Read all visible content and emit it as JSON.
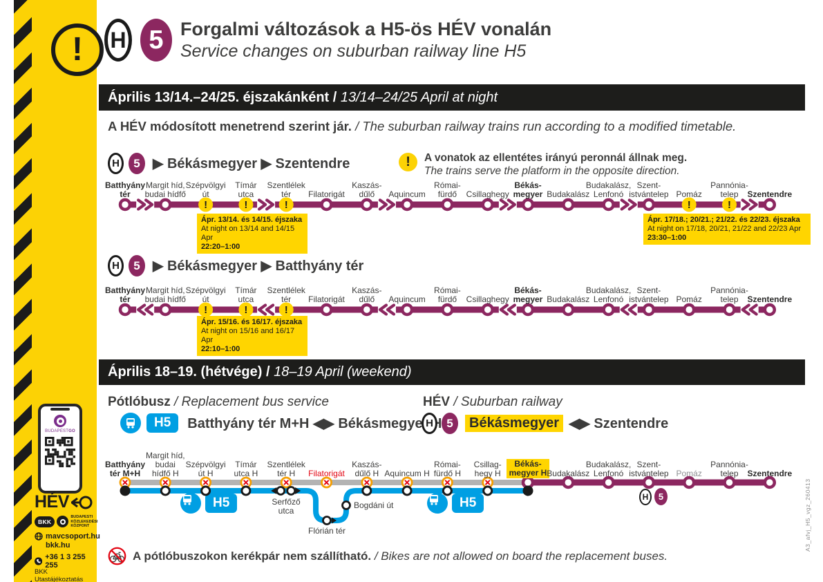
{
  "colors": {
    "purple": "#8C2760",
    "yellow": "#FFD500",
    "sidebar_yellow": "#FCD205",
    "blue": "#009FE3",
    "grayline": "#B3B3B3",
    "orange": "#F59E00",
    "red": "#E30613",
    "bar": "#1D1D1B",
    "text": "#3C3C3B"
  },
  "badges": {
    "h": "H",
    "five": "5"
  },
  "header": {
    "title_hu": "Forgalmi változások a H5-ös HÉV vonalán",
    "title_en": "Service changes on suburban railway line H5"
  },
  "night": {
    "bar_bold": "Április 13/14.–24/25. éjszakánként / ",
    "bar_italic": "13/14–24/25 April at night",
    "intro_bold": "A HÉV módosított menetrend szerint jár.",
    "intro_italic": " / The suburban railway trains run according to a modified timetable.",
    "platform_note_hu": "A vonatok az ellentétes irányú peronnál állnak meg.",
    "platform_note_en": "The trains serve the platform in the opposite direction."
  },
  "route1": {
    "title": "▶ Békásmegyer ▶ Szentendre"
  },
  "route2": {
    "title": "▶ Békásmegyer ▶ Batthyány tér"
  },
  "diagram1": {
    "dir": "right",
    "gaps": [
      0,
      3,
      6,
      9,
      12,
      15
    ],
    "stations": [
      {
        "label": "Batthyány|tér",
        "bold": true
      },
      {
        "label": "Margit híd,|budai hídfő"
      },
      {
        "label": "Szépvölgyi|út",
        "warn": true
      },
      {
        "label": "Tímár|utca",
        "warn": true
      },
      {
        "label": "Szentlélek|tér",
        "warn": true
      },
      {
        "label": "Filatorigát"
      },
      {
        "label": "Kaszás-|dűlő"
      },
      {
        "label": "Aquincum"
      },
      {
        "label": "Római-|fürdő"
      },
      {
        "label": "Csillaghegy"
      },
      {
        "label": "Békás-|megyer",
        "bold": true
      },
      {
        "label": "Budakalász"
      },
      {
        "label": "Budakalász,|Lenfonó"
      },
      {
        "label": "Szent-|istvántelep"
      },
      {
        "label": "Pomáz",
        "warn": true
      },
      {
        "label": "Pannónia-|telep",
        "warn": true
      },
      {
        "label": "Szentendre",
        "bold": true
      }
    ]
  },
  "diagram2": {
    "dir": "left",
    "gaps": [
      0,
      3,
      6,
      9,
      12,
      15
    ],
    "stations": [
      {
        "label": "Batthyány|tér",
        "bold": true
      },
      {
        "label": "Margit híd,|budai hídfő"
      },
      {
        "label": "Szépvölgyi|út",
        "warn": true
      },
      {
        "label": "Tímár|utca",
        "warn": true
      },
      {
        "label": "Szentlélek|tér",
        "warn": true
      },
      {
        "label": "Filatorigát"
      },
      {
        "label": "Kaszás-|dűlő"
      },
      {
        "label": "Aquincum"
      },
      {
        "label": "Római-|fürdő"
      },
      {
        "label": "Csillaghegy"
      },
      {
        "label": "Békás-|megyer",
        "bold": true
      },
      {
        "label": "Budakalász"
      },
      {
        "label": "Budakalász,|Lenfonó"
      },
      {
        "label": "Szent-|istvántelep"
      },
      {
        "label": "Pomáz"
      },
      {
        "label": "Pannónia-|telep"
      },
      {
        "label": "Szentendre",
        "bold": true
      }
    ]
  },
  "notes": {
    "n1": {
      "l1": "Ápr. 13/14. és 14/15. éjszaka",
      "l2": "At night on 13/14 and 14/15 Apr",
      "l3": "22:20–1:00"
    },
    "n2": {
      "l1": "Ápr. 17/18.; 20/21.; 21/22. és 22/23. éjszaka",
      "l2": "At night on 17/18, 20/21, 21/22 and 22/23 Apr",
      "l3": "23:30–1:00"
    },
    "n3": {
      "l1": "Ápr. 15/16. és 16/17. éjszaka",
      "l2": "At night on 15/16 and 16/17 Apr",
      "l3": "22:10–1:00"
    }
  },
  "weekend": {
    "bar_bold": "Április 18–19. (hétvége) / ",
    "bar_italic": "18–19 April (weekend)",
    "bus_heading_bold": "Pótlóbusz",
    "bus_heading_italic": " / Replacement bus service",
    "bus_badge": "H5",
    "bus_route": "Batthyány tér M+H ◀▶ Békásmegyer H",
    "hev_heading_bold": "HÉV",
    "hev_heading_italic": " / Suburban railway",
    "hev_highlight": "Békásmegyer",
    "hev_route_rest": "◀▶ Szentendre"
  },
  "diagram3": {
    "stations": [
      {
        "label": "Batthyány|tér M+H",
        "bold": true,
        "kind": "x",
        "dot": "term"
      },
      {
        "label": "Margit híd,|budai|hídfő H",
        "kind": "x",
        "dot": "bus"
      },
      {
        "label": "Szépvölgyi|út H",
        "kind": "x",
        "dot": "bus"
      },
      {
        "label": "Tímár|utca H",
        "kind": "x",
        "dot": "bus"
      },
      {
        "label": "Szentlélek|tér H",
        "kind": "x",
        "dot": "none"
      },
      {
        "label": "Filatorigát",
        "kind": "x",
        "red": true,
        "dot": "none"
      },
      {
        "label": "Kaszás-|dűlő H",
        "kind": "x",
        "dot": "bus"
      },
      {
        "label": "Aquincum H",
        "kind": "x",
        "dot": "bus"
      },
      {
        "label": "Római-|fürdő H",
        "kind": "x",
        "dot": "bus"
      },
      {
        "label": "Csillag-|hegy H",
        "kind": "x",
        "dot": "bus"
      },
      {
        "label": "Békás-|megyer H",
        "bold": true,
        "hl": true,
        "kind": "p",
        "dot": "term"
      },
      {
        "label": "Budakalász",
        "kind": "p"
      },
      {
        "label": "Budakalász,|Lenfonó",
        "kind": "p"
      },
      {
        "label": "Szent-|istvántelep",
        "kind": "p"
      },
      {
        "label": "Pomáz",
        "kind": "p",
        "muted": true
      },
      {
        "label": "Pannónia-|telep",
        "kind": "p"
      },
      {
        "label": "Szentendre",
        "bold": true,
        "kind": "p"
      }
    ],
    "serfozo_l1": "Serfőző",
    "serfozo_l2": "utca",
    "florian": "Flórián tér",
    "bogdani": "Bogdáni út"
  },
  "bike_note": {
    "hu": "A pótlóbuszokon kerékpár nem szállítható.",
    "en": " / Bikes are not allowed on board the replacement buses."
  },
  "sidebar": {
    "app_name1": "BUDAPEST",
    "app_name2": "GO",
    "hev": "HÉV",
    "bkk": "BKK",
    "center1": "BUDAPESTI",
    "center2": "KÖZLEKEDÉSI",
    "center3": "KÖZPONT",
    "web1": "mavcsoport.hu",
    "web2": "bkk.hu",
    "phone": "+36 1 3 255 255",
    "info": "BKK Utastájékoztatás"
  },
  "footer_code": "A3_afvj_H5_vgz_260413"
}
